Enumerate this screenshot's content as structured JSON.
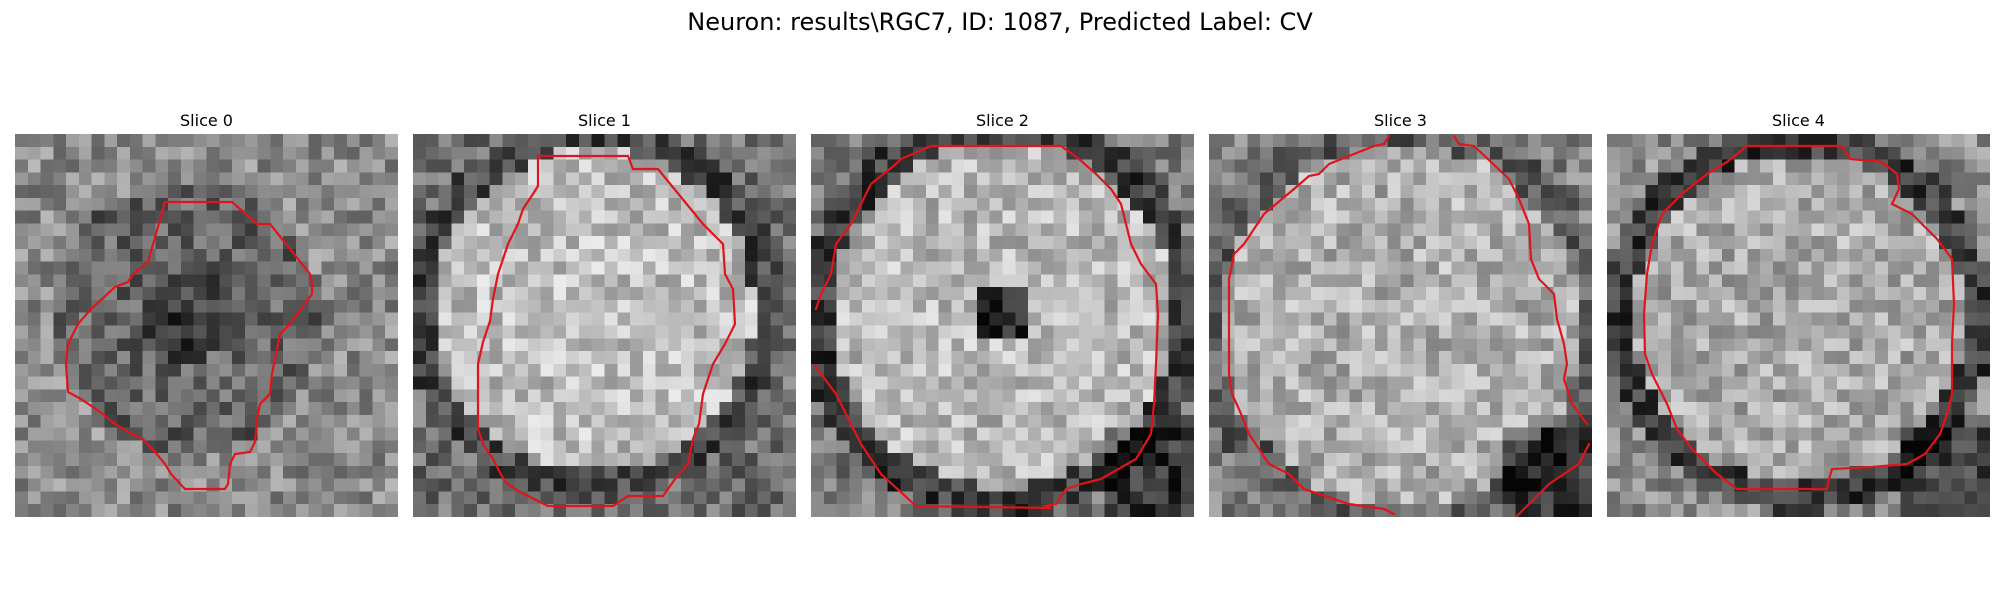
{
  "figure": {
    "title": "Neuron: results\\RGC7, ID: 1087, Predicted Label: CV",
    "contour_color": "#e0151b",
    "colormap": "gray"
  },
  "panels": [
    {
      "title": "Slice 0"
    },
    {
      "title": "Slice 1"
    },
    {
      "title": "Slice 2"
    },
    {
      "title": "Slice 3"
    },
    {
      "title": "Slice 4"
    }
  ]
}
